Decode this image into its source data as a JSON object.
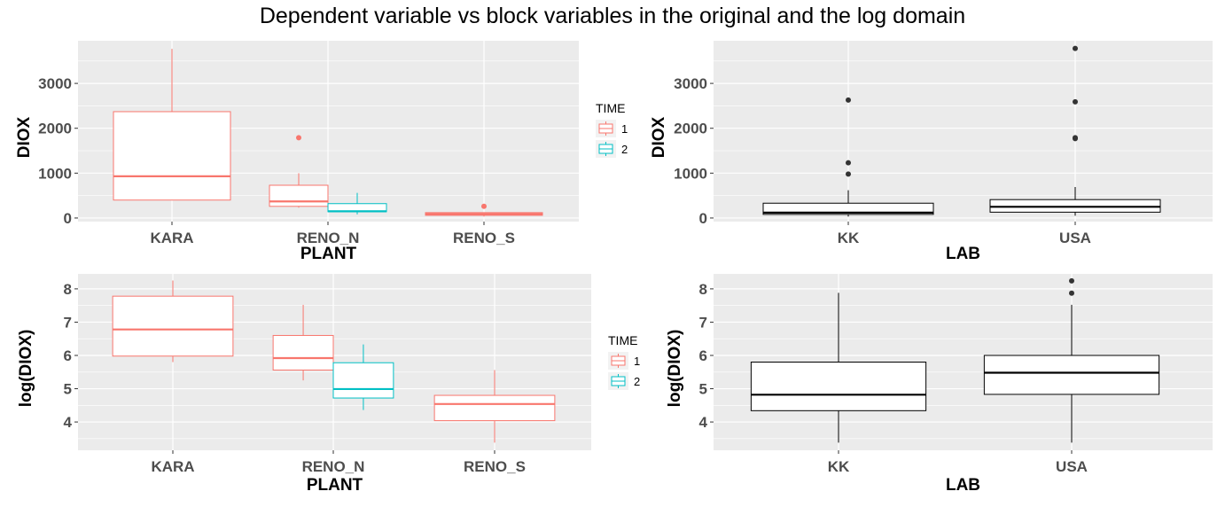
{
  "title": "Dependent variable vs block variables in the original and the log domain",
  "colors": {
    "time1": "#F8766D",
    "time2": "#00BFC4",
    "panel_bg": "#EBEBEB",
    "grid": "#FFFFFF",
    "outlier": "#333333"
  },
  "chart_data": [
    {
      "type": "box",
      "xlabel": "PLANT",
      "ylabel": "DIOX",
      "categories": [
        "KARA",
        "RENO_N",
        "RENO_S"
      ],
      "yticks": [
        0,
        1000,
        2000,
        3000
      ],
      "ylim": [
        -80,
        3950
      ],
      "legend": {
        "title": "TIME",
        "entries": [
          "1",
          "2"
        ],
        "position": "right"
      },
      "boxes": [
        {
          "category": "KARA",
          "group": "1",
          "color": "#F8766D",
          "lower_whisker": 400,
          "q1": 400,
          "median": 930,
          "q3": 2370,
          "upper_whisker": 3770,
          "outliers": []
        },
        {
          "category": "RENO_N",
          "group": "1",
          "color": "#F8766D",
          "lower_whisker": 230,
          "q1": 260,
          "median": 370,
          "q3": 730,
          "upper_whisker": 1000,
          "outliers": [
            1790
          ]
        },
        {
          "category": "RENO_N",
          "group": "2",
          "color": "#00BFC4",
          "lower_whisker": 80,
          "q1": 140,
          "median": 150,
          "q3": 320,
          "upper_whisker": 560,
          "outliers": []
        },
        {
          "category": "RENO_S",
          "group": "1",
          "color": "#F8766D",
          "lower_whisker": 30,
          "q1": 60,
          "median": 90,
          "q3": 120,
          "upper_whisker": 120,
          "outliers": [
            260
          ]
        }
      ]
    },
    {
      "type": "box",
      "xlabel": "LAB",
      "ylabel": "DIOX",
      "categories": [
        "KK",
        "USA"
      ],
      "yticks": [
        0,
        1000,
        2000,
        3000
      ],
      "ylim": [
        -80,
        3950
      ],
      "boxes": [
        {
          "category": "KK",
          "lower_whisker": 30,
          "q1": 80,
          "median": 120,
          "q3": 330,
          "upper_whisker": 620,
          "outliers": [
            980,
            1230,
            2630
          ]
        },
        {
          "category": "USA",
          "lower_whisker": 50,
          "q1": 130,
          "median": 250,
          "q3": 410,
          "upper_whisker": 690,
          "outliers": [
            1770,
            1790,
            2590,
            3780
          ]
        }
      ]
    },
    {
      "type": "box",
      "xlabel": "PLANT",
      "ylabel": "log(DIOX)",
      "categories": [
        "KARA",
        "RENO_N",
        "RENO_S"
      ],
      "yticks": [
        4,
        5,
        6,
        7,
        8
      ],
      "ylim": [
        3.15,
        8.45
      ],
      "legend": {
        "title": "TIME",
        "entries": [
          "1",
          "2"
        ],
        "position": "right"
      },
      "boxes": [
        {
          "category": "KARA",
          "group": "1",
          "color": "#F8766D",
          "lower_whisker": 5.8,
          "q1": 5.98,
          "median": 6.78,
          "q3": 7.78,
          "upper_whisker": 8.25,
          "outliers": []
        },
        {
          "category": "RENO_N",
          "group": "1",
          "color": "#F8766D",
          "lower_whisker": 5.25,
          "q1": 5.56,
          "median": 5.92,
          "q3": 6.6,
          "upper_whisker": 7.52,
          "outliers": []
        },
        {
          "category": "RENO_N",
          "group": "2",
          "color": "#00BFC4",
          "lower_whisker": 4.36,
          "q1": 4.72,
          "median": 4.99,
          "q3": 5.78,
          "upper_whisker": 6.33,
          "outliers": []
        },
        {
          "category": "RENO_S",
          "group": "1",
          "color": "#F8766D",
          "lower_whisker": 3.38,
          "q1": 4.04,
          "median": 4.54,
          "q3": 4.8,
          "upper_whisker": 5.56,
          "outliers": []
        }
      ]
    },
    {
      "type": "box",
      "xlabel": "LAB",
      "ylabel": "log(DIOX)",
      "categories": [
        "KK",
        "USA"
      ],
      "yticks": [
        4,
        5,
        6,
        7,
        8
      ],
      "ylim": [
        3.15,
        8.45
      ],
      "boxes": [
        {
          "category": "KK",
          "lower_whisker": 3.38,
          "q1": 4.34,
          "median": 4.82,
          "q3": 5.8,
          "upper_whisker": 7.88,
          "outliers": []
        },
        {
          "category": "USA",
          "lower_whisker": 3.38,
          "q1": 4.83,
          "median": 5.48,
          "q3": 6.0,
          "upper_whisker": 7.52,
          "outliers": [
            7.87,
            8.24
          ]
        }
      ]
    }
  ]
}
